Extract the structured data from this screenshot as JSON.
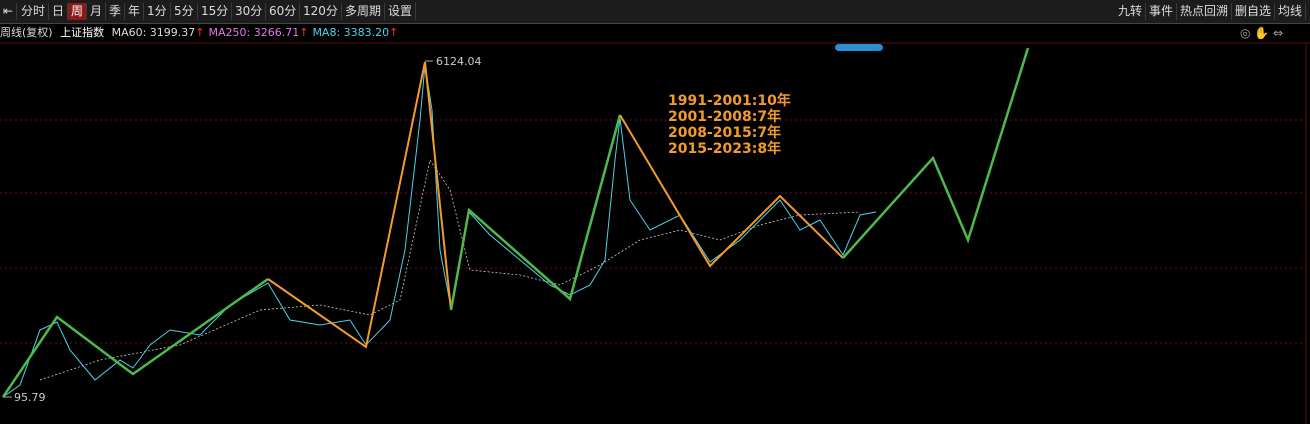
{
  "toolbar": {
    "left": [
      "分时",
      "日",
      "周",
      "月",
      "季",
      "年",
      "1分",
      "5分",
      "15分",
      "30分",
      "60分",
      "120分",
      "多周期",
      "设置"
    ],
    "right": [
      "九转",
      "事件",
      "热点回溯",
      "删自选",
      "均线"
    ]
  },
  "info": {
    "period": "周线(复权)",
    "name": "上证指数",
    "indicators": [
      {
        "label": "MA60: 3199.37",
        "arrow": "↑"
      },
      {
        "label": "MA250: 3266.71",
        "arrow": "↑"
      },
      {
        "label": "MA8: 3383.20",
        "arrow": "↑"
      }
    ]
  },
  "chart": {
    "high_label": "6124.04",
    "low_label": "95.79",
    "notes": [
      "1991-2001:10年",
      "2001-2008:7年",
      "2008-2015:7年",
      "2015-2023:8年"
    ]
  }
}
